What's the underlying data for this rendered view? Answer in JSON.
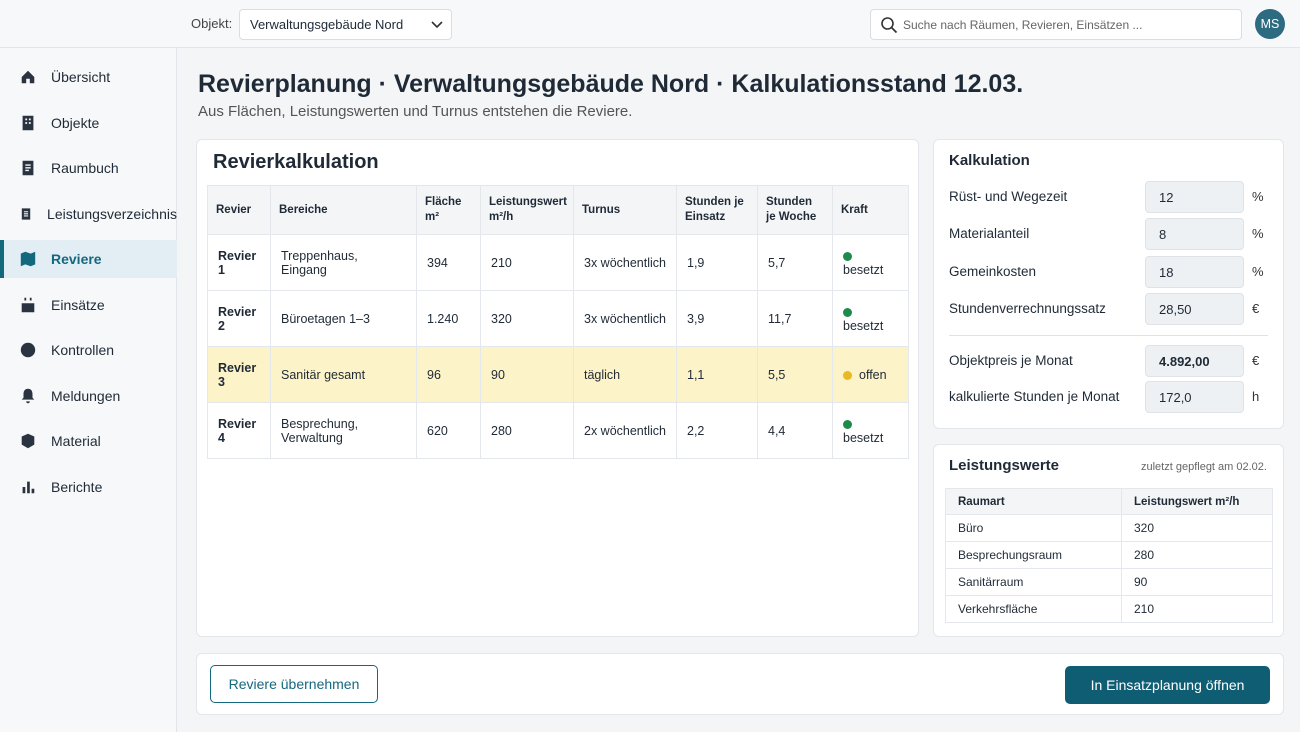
{
  "topbar": {
    "object_label": "Objekt:",
    "object_value": "Verwaltungsgebäude Nord",
    "search_placeholder": "Suche nach Räumen, Revieren, Einsätzen ...",
    "avatar": "MS"
  },
  "nav": [
    {
      "label": "Übersicht"
    },
    {
      "label": "Objekte"
    },
    {
      "label": "Raumbuch"
    },
    {
      "label": "Leistungsverzeichnis"
    },
    {
      "label": "Reviere",
      "active": true
    },
    {
      "label": "Einsätze"
    },
    {
      "label": "Kontrollen"
    },
    {
      "label": "Meldungen"
    },
    {
      "label": "Material"
    },
    {
      "label": "Berichte"
    }
  ],
  "header": {
    "title": "Revierplanung · Verwaltungsgebäude Nord · Kalkulationsstand 12.03.",
    "subtitle": "Aus Flächen, Leistungswerten und Turnus entstehen die Reviere."
  },
  "table": {
    "title": "Revierkalkulation",
    "columns": [
      "Revier",
      "Bereiche",
      "Fläche m²",
      "Leistungswert m²/h",
      "Turnus",
      "Stunden je Einsatz",
      "Stunden je Woche",
      "Kraft"
    ],
    "rows": [
      {
        "cells": [
          "Revier 1",
          "Treppenhaus, Eingang",
          "394",
          "210",
          "3x wöchentlich",
          "1,9",
          "5,7"
        ],
        "status": {
          "label": "besetzt",
          "color": "#1e8a4c"
        }
      },
      {
        "cells": [
          "Revier 2",
          "Büroetagen 1–3",
          "1.240",
          "320",
          "3x wöchentlich",
          "3,9",
          "11,7"
        ],
        "status": {
          "label": "besetzt",
          "color": "#1e8a4c"
        }
      },
      {
        "cells": [
          "Revier 3",
          "Sanitär gesamt",
          "96",
          "90",
          "täglich",
          "1,1",
          "5,5"
        ],
        "status": {
          "label": "offen",
          "color": "#e8b923"
        },
        "highlight": true
      },
      {
        "cells": [
          "Revier 4",
          "Besprechung, Verwaltung",
          "620",
          "280",
          "2x wöchentlich",
          "2,2",
          "4,4"
        ],
        "status": {
          "label": "besetzt",
          "color": "#1e8a4c"
        }
      }
    ]
  },
  "calc": {
    "title": "Kalkulation",
    "fields": [
      {
        "label": "Rüst- und Wegezeit",
        "value": "12",
        "unit": "%"
      },
      {
        "label": "Materialanteil",
        "value": "8",
        "unit": "%"
      },
      {
        "label": "Gemeinkosten",
        "value": "18",
        "unit": "%"
      },
      {
        "label": "Stundenverrechnungssatz",
        "value": "28,50",
        "unit": "€"
      }
    ],
    "results": [
      {
        "label": "Objektpreis je Monat",
        "value": "4.892,00",
        "unit": "€"
      },
      {
        "label": "kalkulierte Stunden je Monat",
        "value": "172,0",
        "unit": "h"
      }
    ]
  },
  "rates": {
    "title": "Leistungswerte",
    "note": "zuletzt gepflegt am 02.02.",
    "columns": [
      "Raumart",
      "Leistungswert m²/h"
    ],
    "rows": [
      [
        "Büro",
        "320"
      ],
      [
        "Besprechungsraum",
        "280"
      ],
      [
        "Sanitärraum",
        "90"
      ],
      [
        "Verkehrsfläche",
        "210"
      ]
    ]
  },
  "actions": {
    "secondary": "Reviere übernehmen",
    "primary": "In Einsatzplanung öffnen"
  }
}
